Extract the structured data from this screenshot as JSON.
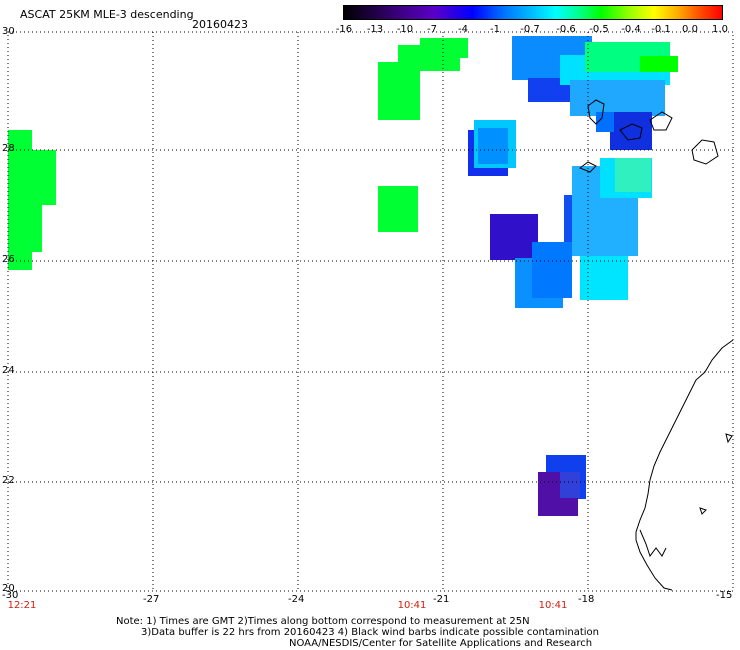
{
  "title": "ASCAT 25KM MLE-3 descending",
  "date": "20160423",
  "colorbar": {
    "labels": [
      "-16",
      "-13",
      "-10",
      "-7",
      "-4",
      "-1",
      "-0.7",
      "-0.6",
      "-0.5",
      "-0.4",
      "-0.1",
      "0.0",
      "1.0"
    ]
  },
  "axes": {
    "lat_ticks": [
      "30",
      "28",
      "26",
      "24",
      "22",
      "20"
    ],
    "lon_ticks": [
      "-30",
      "-27",
      "-24",
      "-21",
      "-18",
      "-15"
    ],
    "lat_range": [
      20,
      30
    ],
    "lon_range": [
      -30,
      -15
    ],
    "grid": "dotted"
  },
  "time_labels": [
    "12:21",
    "10:41",
    "10:41"
  ],
  "notes": {
    "line1": "Note: 1) Times are GMT 2)Times along bottom correspond to measurement at 25N",
    "line2": "3)Data buffer is 22 hrs from 20160423 4) Black wind barbs indicate possible contamination",
    "line3": "NOAA/NESDIS/Center for Satellite Applications and Research"
  },
  "colors": {
    "green": "#00ff33",
    "light_cyan": "#00e5ff",
    "blue": "#0088ff",
    "deep_blue": "#1030ee",
    "indigo": "#3010c8",
    "purple": "#5010a8"
  }
}
